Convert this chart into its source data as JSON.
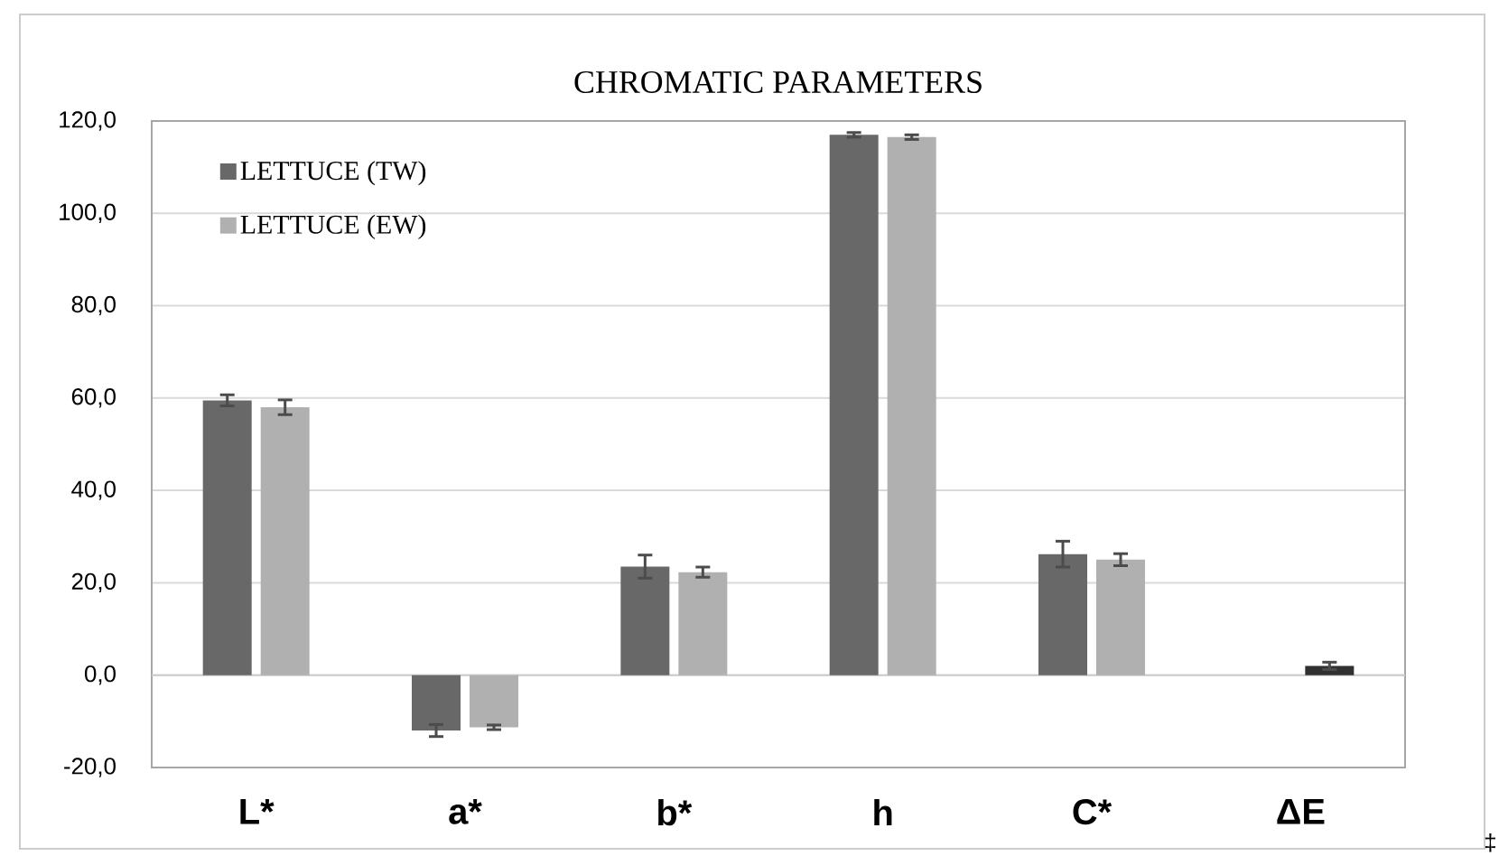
{
  "chart_data": {
    "type": "bar",
    "title": "CHROMATIC PARAMETERS",
    "categories": [
      "L*",
      "a*",
      "b*",
      "h",
      "C*",
      "ΔE"
    ],
    "series": [
      {
        "name": "LETTUCE (TW)",
        "color": "#686868",
        "values": [
          59.5,
          -12.0,
          23.5,
          117.0,
          26.2,
          null
        ],
        "errors": [
          1.2,
          1.3,
          2.5,
          0.5,
          2.8,
          null
        ]
      },
      {
        "name": "LETTUCE (EW)",
        "color": "#b0b0b0",
        "colors": [
          "#b0b0b0",
          "#b0b0b0",
          "#b0b0b0",
          "#b0b0b0",
          "#b0b0b0",
          "#303030"
        ],
        "values": [
          58.0,
          -11.3,
          22.3,
          116.5,
          25.0,
          2.0
        ],
        "errors": [
          1.6,
          0.5,
          1.1,
          0.5,
          1.3,
          0.8
        ]
      }
    ],
    "ylim": [
      -20,
      120
    ],
    "yticks": [
      {
        "value": -20,
        "label": "-20,0"
      },
      {
        "value": 0,
        "label": "0,0"
      },
      {
        "value": 20,
        "label": "20,0"
      },
      {
        "value": 40,
        "label": "40,0"
      },
      {
        "value": 60,
        "label": "60,0"
      },
      {
        "value": 80,
        "label": "80,0"
      },
      {
        "value": 100,
        "label": "100,0"
      },
      {
        "value": 120,
        "label": "120,0"
      }
    ],
    "grid": "y",
    "legend": "top left",
    "annotations": [
      "‡"
    ]
  }
}
